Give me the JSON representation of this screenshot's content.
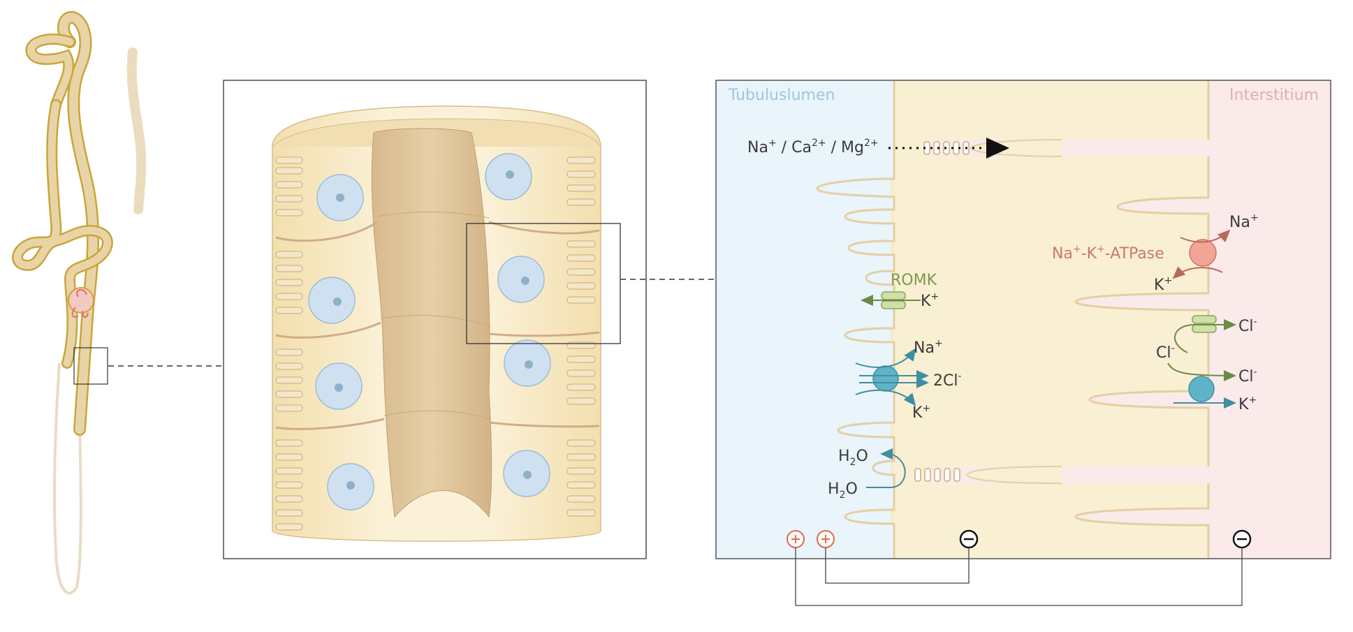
{
  "regions": {
    "lumen": "Tubuluslumen",
    "interstitium": "Interstitium"
  },
  "paracellular": {
    "ions_na": "Na",
    "ions_na_sup": "+",
    "sep1": " / Ca",
    "ca_sup": "2+",
    "sep2": " / Mg",
    "mg_sup": "2+"
  },
  "romk": {
    "name": "ROMK",
    "k_ion": "K",
    "k_sup": "+"
  },
  "nkcc2": {
    "na_ion": "Na",
    "na_sup": "+",
    "cl_ion": "2Cl",
    "cl_sup": "-",
    "k_ion": "K",
    "k_sup": "+"
  },
  "water": {
    "top_pre": "H",
    "top_sub": "2",
    "top_post": "O",
    "bottom_pre": "H",
    "bottom_sub": "2",
    "bottom_post": "O"
  },
  "atpase": {
    "name_pre": "Na",
    "name_sup1": "+",
    "name_mid": "-K",
    "name_sup2": "+",
    "name_post": "-ATPase",
    "na_ion": "Na",
    "na_sup": "+",
    "k_ion": "K",
    "k_sup": "+"
  },
  "basolateral": {
    "cl_channel_ion": "Cl",
    "cl_channel_sup": "-",
    "cl_inner": "Cl",
    "cl_inner_sup": "-",
    "kcc_cl": "Cl",
    "kcc_cl_sup": "-",
    "kcc_k": "K",
    "kcc_k_sup": "+"
  },
  "colors": {
    "lumen_bg": "#e9f4fb",
    "cell_bg": "#f7ebc9",
    "interstitium_bg": "#fbeaea",
    "lumen_text": "#9fc7dc",
    "interstitium_text": "#e0aeae",
    "romk": "#7a9a4e",
    "nkcc": "#4fa3b8",
    "atpase": "#e58a7a",
    "plus": "#e06a4a"
  }
}
